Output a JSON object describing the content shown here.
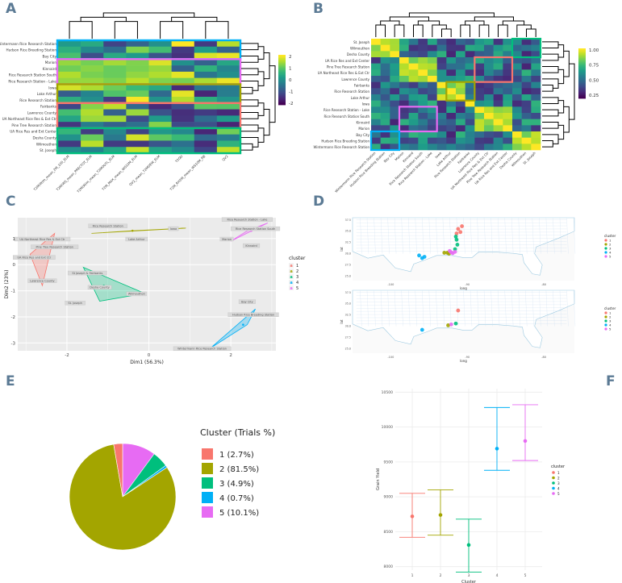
{
  "panels": {
    "a": "A",
    "b": "B",
    "c": "C",
    "d": "D",
    "e": "E",
    "f": "F"
  },
  "colors": {
    "c1": "#F8766D",
    "c2": "#A3A500",
    "c3": "#00BF7D",
    "c4": "#00B0F6",
    "c5": "#E76BF3",
    "panel_letter": "#5b7a94"
  },
  "chart_data": [
    {
      "id": "A",
      "type": "heatmap",
      "rows": [
        "Wintermann Rice Research Station",
        "Hudson Rice Breeding Station",
        "Bay City",
        "Marion",
        "Kinnaird",
        "Rice Research Station South",
        "Rice Research Station - Lake",
        "Iowa",
        "Lake Arthur",
        "Rice Research Station",
        "Fairbanks",
        "Lawrence County",
        "UA Northeast Rice Res & Ext Ctr",
        "Pine Tree Research Station",
        "UA Rice Res and Ext Center",
        "Desha County",
        "Wilmouthon",
        "St. Joseph"
      ],
      "columns": [
        "T2M(W/m_mean_2M_100_ELM",
        "T2M(WS_mean_PRECTOT_ELM",
        "T2M(W/m_mean_T2MOUTL_ELM",
        "T2M_MAX_mean_WS10M_ELM",
        "QV2_mean_T2MDEW_ELM",
        "T2QU",
        "T2M_RH2M_mean_WS10M_RB",
        "QV2"
      ],
      "scale": [
        -2,
        2
      ],
      "legend_ticks": [
        "2",
        "1",
        "0",
        "-1",
        "-2"
      ],
      "boxes": [
        "rows 1-3",
        "rows 4-7",
        "rows 8-10",
        "rows 11-14",
        "rows 15-18"
      ]
    },
    {
      "id": "B",
      "type": "heatmap",
      "rows": [
        "St. Joseph",
        "Wilmouthon",
        "Desha County",
        "UA Rice Res and Ext Center",
        "Pine Tree Research Station",
        "UA Northeast Rice Res & Ext Ctr",
        "Lawrence County",
        "Fairbanks",
        "Rice Research Station",
        "Lake Arthur",
        "Iowa",
        "Rice Research Station - Lake",
        "Rice Research Station South",
        "Kinnaird",
        "Marion",
        "Bay City",
        "Hudson Rice Breeding Station",
        "Wintermann Rice Research Station"
      ],
      "scale": [
        0,
        1
      ],
      "legend_ticks": [
        "1.00",
        "0.75",
        "0.50",
        "0.25"
      ]
    },
    {
      "id": "C",
      "type": "scatter",
      "xlabel": "Dim1 (56.3%)",
      "ylabel": "Dim2 (23%)",
      "xlim": [
        -3.2,
        3.1
      ],
      "ylim": [
        -3.3,
        1.8
      ],
      "x_ticks": [
        "-2",
        "0",
        "2"
      ],
      "y_ticks": [
        "1",
        "0",
        "-1",
        "-2",
        "-3"
      ],
      "legend_title": "cluster",
      "legend": [
        "1",
        "2",
        "3",
        "4",
        "5"
      ],
      "hulls": [
        {
          "cluster": "1",
          "points": [
            [
              -2.9,
              0.4
            ],
            [
              -2.3,
              1.2
            ],
            [
              -2.6,
              -0.8
            ]
          ],
          "center": [
            -2.6,
            0.3
          ]
        },
        {
          "cluster": "2",
          "points": [
            [
              -1.4,
              1.2
            ],
            [
              0.9,
              1.4
            ],
            [
              -0.4,
              1.3
            ]
          ],
          "center": [
            -0.4,
            1.3
          ]
        },
        {
          "cluster": "3",
          "points": [
            [
              -1.6,
              -0.1
            ],
            [
              -0.1,
              -1.1
            ],
            [
              -1.2,
              -1.4
            ]
          ],
          "center": [
            -1.1,
            -0.8
          ]
        },
        {
          "cluster": "4",
          "points": [
            [
              1.5,
              -3.2
            ],
            [
              2.6,
              -1.7
            ],
            [
              2.4,
              -2.3
            ]
          ],
          "center": [
            2.3,
            -2.3
          ]
        },
        {
          "cluster": "5",
          "points": [
            [
              2.0,
              0.9
            ],
            [
              2.9,
              1.6
            ],
            [
              2.4,
              1.3
            ]
          ],
          "center": [
            2.5,
            1.3
          ]
        }
      ],
      "labels": [
        {
          "text": "UA Northeast Rice Res & Ext Ctr",
          "x": -2.6,
          "y": 0.95
        },
        {
          "text": "Pine Tree Research Station",
          "x": -2.3,
          "y": 0.65
        },
        {
          "text": "UA Rice Res and Ext Ctr",
          "x": -2.8,
          "y": 0.25
        },
        {
          "text": "Lawrence County",
          "x": -2.6,
          "y": -0.65
        },
        {
          "text": "Rice Research Station",
          "x": -1.0,
          "y": 1.45
        },
        {
          "text": "Lake Arthur",
          "x": -0.3,
          "y": 0.95
        },
        {
          "text": "Iowa",
          "x": 0.6,
          "y": 1.35
        },
        {
          "text": "St Joseph & Fairbanks",
          "x": -1.5,
          "y": -0.35
        },
        {
          "text": "Desha County",
          "x": -1.2,
          "y": -0.9
        },
        {
          "text": "St. Joseph",
          "x": -1.8,
          "y": -1.5
        },
        {
          "text": "Wilmouthon",
          "x": -0.3,
          "y": -1.15
        },
        {
          "text": "Rice Research Station - Lake",
          "x": 2.4,
          "y": 1.7
        },
        {
          "text": "Rice Research Station South",
          "x": 2.6,
          "y": 1.35
        },
        {
          "text": "Marion",
          "x": 1.9,
          "y": 0.95
        },
        {
          "text": "Kinnaird",
          "x": 2.5,
          "y": 0.7
        },
        {
          "text": "Bay City",
          "x": 2.4,
          "y": -1.45
        },
        {
          "text": "Hudson Rice Breeding Station",
          "x": 2.55,
          "y": -1.95
        },
        {
          "text": "Wintermann Rice Research Station",
          "x": 1.3,
          "y": -3.25
        }
      ]
    },
    {
      "id": "D",
      "type": "scatter",
      "xlabel": "long",
      "ylabel": "lat",
      "x_ticks": [
        "-100",
        "-90",
        "-80"
      ],
      "y_ticks": [
        "37.5",
        "35.0",
        "32.5",
        "30.0",
        "27.5",
        "25.0"
      ],
      "legend_title": "cluster",
      "legend": [
        "1",
        "2",
        "3",
        "4",
        "5"
      ],
      "top_points": [
        {
          "cluster": "1",
          "x": -90.7,
          "y": 36.1
        },
        {
          "cluster": "1",
          "x": -91.2,
          "y": 35.5
        },
        {
          "cluster": "1",
          "x": -90.9,
          "y": 34.8
        },
        {
          "cluster": "1",
          "x": -91.4,
          "y": 34.5
        },
        {
          "cluster": "2",
          "x": -92.6,
          "y": 30.2
        },
        {
          "cluster": "2",
          "x": -92.4,
          "y": 30.0
        },
        {
          "cluster": "2",
          "x": -93.0,
          "y": 30.2
        },
        {
          "cluster": "3",
          "x": -91.5,
          "y": 33.8
        },
        {
          "cluster": "3",
          "x": -91.4,
          "y": 33.1
        },
        {
          "cluster": "3",
          "x": -91.3,
          "y": 32.0
        },
        {
          "cluster": "3",
          "x": -91.6,
          "y": 31.0
        },
        {
          "cluster": "4",
          "x": -95.9,
          "y": 29.0
        },
        {
          "cluster": "4",
          "x": -96.3,
          "y": 29.6
        },
        {
          "cluster": "4",
          "x": -95.6,
          "y": 29.3
        },
        {
          "cluster": "5",
          "x": -92.1,
          "y": 30.3
        },
        {
          "cluster": "5",
          "x": -91.9,
          "y": 30.1
        },
        {
          "cluster": "5",
          "x": -92.3,
          "y": 30.6
        },
        {
          "cluster": "5",
          "x": -91.6,
          "y": 30.4
        }
      ],
      "bottom_points": [
        {
          "cluster": "1",
          "x": -91.2,
          "y": 33.5
        },
        {
          "cluster": "2",
          "x": -92.5,
          "y": 30.2
        },
        {
          "cluster": "3",
          "x": -91.5,
          "y": 30.6
        },
        {
          "cluster": "4",
          "x": -95.9,
          "y": 29.2
        },
        {
          "cluster": "5",
          "x": -92.1,
          "y": 30.4
        }
      ]
    },
    {
      "id": "E",
      "type": "pie",
      "legend_title": "Cluster (Trials %)",
      "slices": [
        {
          "label": "1 (2.7%)",
          "value": 2.7,
          "cluster": "c1"
        },
        {
          "label": "2 (81.5%)",
          "value": 81.5,
          "cluster": "c2"
        },
        {
          "label": "3 (4.9%)",
          "value": 4.9,
          "cluster": "c3"
        },
        {
          "label": "4 (0.7%)",
          "value": 0.7,
          "cluster": "c4"
        },
        {
          "label": "5 (10.1%)",
          "value": 10.1,
          "cluster": "c5"
        }
      ]
    },
    {
      "id": "F",
      "type": "scatter",
      "xlabel": "Cluster",
      "ylabel": "Grain Yield",
      "ylim": [
        7950,
        10550
      ],
      "y_ticks": [
        8000,
        8500,
        9000,
        9500,
        10000,
        10500
      ],
      "categories": [
        "1",
        "2",
        "3",
        "4",
        "5"
      ],
      "legend_title": "cluster",
      "legend": [
        "1",
        "2",
        "3",
        "4",
        "5"
      ],
      "points": [
        {
          "cluster": "1",
          "mean": 8720,
          "low": 8420,
          "high": 9050
        },
        {
          "cluster": "2",
          "mean": 8740,
          "low": 8450,
          "high": 9100
        },
        {
          "cluster": "3",
          "mean": 8310,
          "low": 7920,
          "high": 8680
        },
        {
          "cluster": "4",
          "mean": 9690,
          "low": 9380,
          "high": 10280
        },
        {
          "cluster": "5",
          "mean": 9800,
          "low": 9520,
          "high": 10320
        }
      ]
    }
  ]
}
